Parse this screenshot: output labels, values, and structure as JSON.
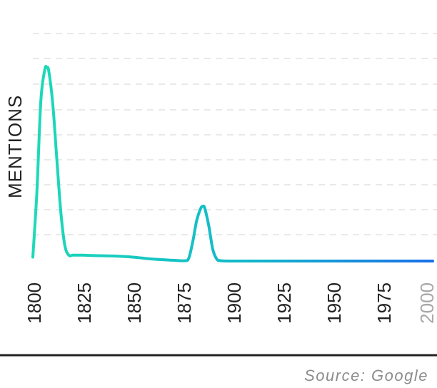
{
  "chart_data": {
    "type": "line",
    "title": "",
    "xlabel": "",
    "ylabel": "MENTIONS",
    "xlim": [
      1800,
      2000
    ],
    "ylim": [
      0,
      100
    ],
    "grid": true,
    "legend": "none",
    "x_ticks": [
      "1800",
      "1825",
      "1850",
      "1875",
      "1900",
      "1925",
      "1950",
      "1975",
      "2000"
    ],
    "series": [
      {
        "x": [
          1800,
          1802,
          1804,
          1806,
          1807,
          1808,
          1810,
          1812,
          1814,
          1816,
          1818,
          1820,
          1825,
          1830,
          1840,
          1850,
          1860,
          1870,
          1876,
          1878,
          1880,
          1882,
          1884,
          1885,
          1886,
          1888,
          1890,
          1892,
          1894,
          1900,
          1925,
          1950,
          1975,
          2000
        ],
        "y": [
          2,
          35,
          82,
          98,
          99,
          97,
          80,
          52,
          25,
          8,
          3,
          3,
          3,
          2.8,
          2.6,
          2,
          1,
          0.4,
          0.2,
          1.5,
          10,
          21,
          27,
          28,
          27,
          18,
          6,
          1,
          0.2,
          0,
          0,
          0,
          0,
          0
        ]
      }
    ],
    "colors": {
      "line_start": "#1ddab7",
      "line_end": "#1a6fe8"
    }
  },
  "source": "Source: Google"
}
